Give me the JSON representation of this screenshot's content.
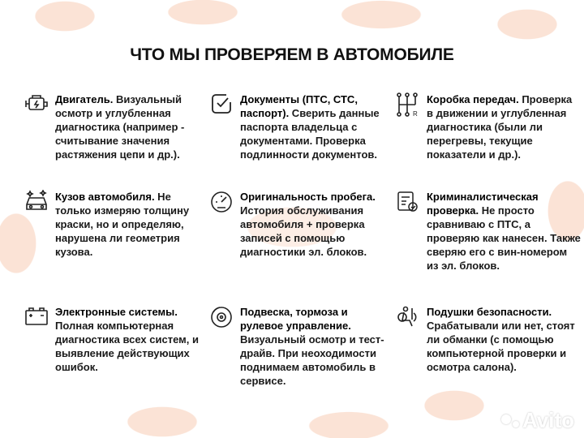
{
  "title": "ЧТО МЫ ПРОВЕРЯЕМ В АВТОМОБИЛЕ",
  "items": [
    {
      "icon": "engine-icon",
      "head": "Двигатель.",
      "body": " Визуальный осмотр и углубленная диагностика (например - считывание значения растяжения цепи и др.)."
    },
    {
      "icon": "checkbox-icon",
      "head": "Документы (ПТС, СТС, паспорт).",
      "body": " Сверить данные паспорта владельца с документами. Проверка подлинности документов."
    },
    {
      "icon": "gearbox-icon",
      "head": "Коробка передач.",
      "body": " Проверка в движении и углубленная диагностика (были ли перегревы, текущие показатели и др.)."
    },
    {
      "icon": "car-body-icon",
      "head": "Кузов автомобиля.",
      "body": " Не только измеряю толщину краски, но и определяю, нарушена ли геометрия кузова."
    },
    {
      "icon": "speedometer-icon",
      "head": "Оригинальность пробега.",
      "body": " История обслуживания автомобиля + проверка записей с помощью диагностики эл. блоков."
    },
    {
      "icon": "forensic-certificate-icon",
      "head": "Криминалистическая проверка.",
      "body": " Не просто сравниваю с ПТС, а проверяю как нанесен. Также сверяю его с вин-номером из эл. блоков."
    },
    {
      "icon": "battery-icon",
      "head": "Электронные системы.",
      "body": " Полная компьютерная диагностика всех систем, и выявление действующих ошибок."
    },
    {
      "icon": "brake-disc-icon",
      "head": "Подвеска, тормоза и рулевое управление.",
      "body": " Визуальный осмотр и тест-драйв. При неоходимости поднимаем автомобиль в сервисе."
    },
    {
      "icon": "airbag-icon",
      "head": "Подушки безопасности.",
      "body": " Срабатывали или нет, стоят ли обманки (с помощью компьютерной проверки и осмотра салона)."
    }
  ],
  "watermark": "Avito"
}
